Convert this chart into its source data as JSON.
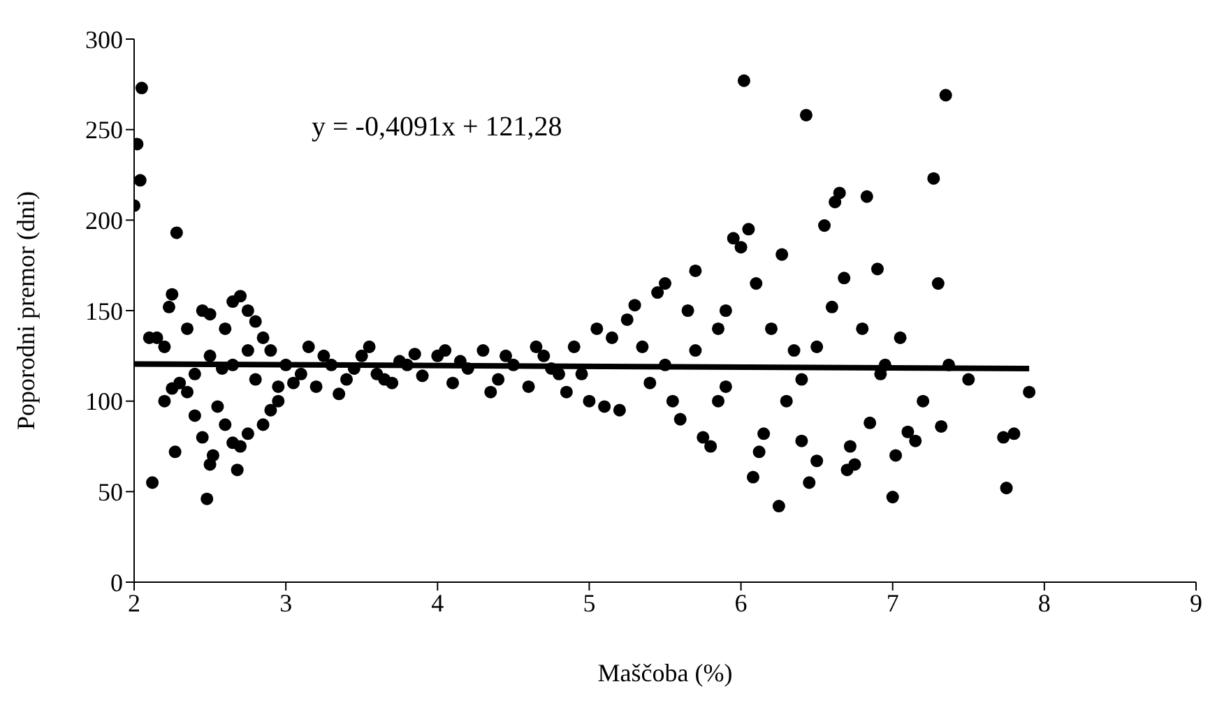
{
  "chart_data": {
    "type": "scatter",
    "xlabel": "Maščoba (%)",
    "ylabel": "Poporodni premor (dni)",
    "annotations": [
      "y = -0,4091x + 121,28"
    ],
    "xlim": [
      2,
      9
    ],
    "xticks": [
      2,
      3,
      4,
      5,
      6,
      7,
      8,
      9
    ],
    "ylim": [
      0,
      300
    ],
    "yticks": [
      0,
      50,
      100,
      150,
      200,
      250,
      300
    ],
    "grid": false,
    "legend": false,
    "series": [
      {
        "color": "#000000",
        "marker": "circle",
        "x": [
          2.05,
          2.02,
          2.04,
          2.0,
          2.28,
          2.12,
          2.48,
          2.1,
          2.15,
          2.2,
          2.23,
          2.25,
          2.35,
          2.45,
          2.5,
          2.6,
          2.65,
          2.7,
          2.75,
          2.8,
          2.85,
          2.9,
          3.0,
          2.2,
          2.25,
          2.3,
          2.4,
          2.45,
          2.55,
          2.6,
          2.65,
          2.7,
          2.75,
          2.85,
          2.9,
          2.95,
          2.27,
          2.52,
          2.5,
          2.68,
          2.58,
          2.35,
          2.4,
          2.5,
          2.65,
          2.75,
          2.8,
          2.95,
          3.1,
          3.2,
          3.3,
          3.4,
          3.5,
          3.6,
          3.7,
          3.8,
          3.9,
          4.0,
          4.1,
          4.2,
          4.3,
          4.4,
          4.5,
          4.6,
          4.7,
          4.8,
          4.9,
          3.15,
          3.35,
          3.55,
          3.75,
          4.05,
          4.35,
          4.65,
          4.85,
          3.05,
          3.25,
          3.45,
          3.65,
          3.85,
          4.15,
          4.45,
          4.75,
          4.95,
          5.0,
          5.05,
          5.1,
          5.15,
          5.2,
          5.25,
          5.3,
          5.35,
          5.4,
          5.45,
          5.5,
          5.55,
          5.6,
          5.65,
          5.7,
          5.75,
          5.8,
          5.85,
          5.9,
          5.95,
          6.0,
          6.02,
          5.5,
          5.7,
          5.9,
          5.85,
          6.05,
          6.1,
          6.15,
          6.08,
          6.12,
          6.2,
          6.25,
          6.27,
          6.3,
          6.35,
          6.4,
          6.43,
          6.45,
          6.5,
          6.55,
          6.6,
          6.62,
          6.65,
          6.68,
          6.7,
          6.72,
          6.75,
          6.8,
          6.83,
          6.9,
          6.92,
          6.95,
          7.0,
          7.02,
          7.05,
          7.1,
          7.15,
          7.2,
          7.27,
          7.3,
          7.32,
          7.35,
          7.37,
          7.5,
          7.73,
          7.75,
          7.8,
          7.9,
          6.4,
          6.5,
          6.85
        ],
        "values": [
          273,
          242,
          222,
          208,
          193,
          55,
          46,
          135,
          135,
          130,
          152,
          159,
          140,
          150,
          148,
          140,
          155,
          158,
          150,
          144,
          135,
          128,
          120,
          100,
          107,
          110,
          92,
          80,
          97,
          87,
          77,
          75,
          82,
          87,
          95,
          100,
          72,
          70,
          65,
          62,
          118,
          105,
          115,
          125,
          120,
          128,
          112,
          108,
          115,
          108,
          120,
          112,
          125,
          115,
          110,
          120,
          114,
          125,
          110,
          118,
          128,
          112,
          120,
          108,
          125,
          115,
          130,
          130,
          104,
          130,
          122,
          128,
          105,
          130,
          105,
          110,
          125,
          118,
          112,
          126,
          122,
          125,
          118,
          115,
          100,
          140,
          97,
          135,
          95,
          145,
          153,
          130,
          110,
          160,
          165,
          100,
          90,
          150,
          172,
          80,
          75,
          140,
          150,
          190,
          185,
          277,
          120,
          128,
          108,
          100,
          195,
          165,
          82,
          58,
          72,
          140,
          42,
          181,
          100,
          128,
          78,
          258,
          55,
          130,
          197,
          152,
          210,
          215,
          168,
          62,
          75,
          65,
          140,
          213,
          173,
          115,
          120,
          47,
          70,
          135,
          83,
          78,
          100,
          223,
          165,
          86,
          269,
          120,
          112,
          80,
          52,
          82,
          105,
          112,
          67,
          88
        ]
      },
      {
        "type": "line",
        "color": "#000000",
        "marker": "none",
        "x": [
          2,
          7.9
        ],
        "values": [
          120.5,
          118
        ]
      }
    ]
  }
}
